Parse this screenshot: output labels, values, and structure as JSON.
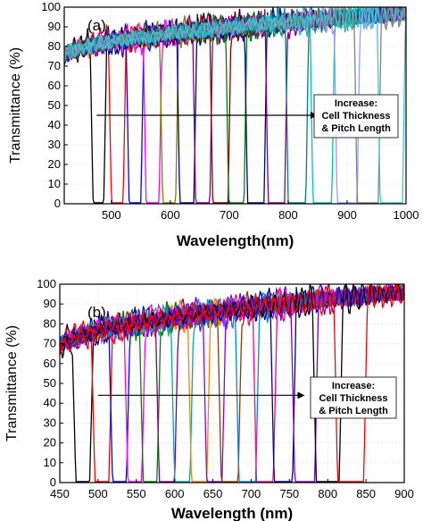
{
  "chart_data": [
    {
      "type": "line",
      "panel_label": "(a)",
      "xlabel": "Wavelength(nm)",
      "ylabel": "Transmittance (%)",
      "xlim": [
        420,
        1000
      ],
      "ylim": [
        0,
        100
      ],
      "xticks": [
        500,
        600,
        700,
        800,
        900,
        1000
      ],
      "yticks": [
        0,
        10,
        20,
        30,
        40,
        50,
        60,
        70,
        80,
        90,
        100
      ],
      "grid": true,
      "annotation": {
        "line1": "Increase:",
        "line2": "Cell Thickness",
        "line3": "& Pitch Length"
      },
      "arrow": {
        "from": [
          475,
          45
        ],
        "to": [
          850,
          45
        ]
      },
      "baseline": {
        "at_440": 75,
        "at_1000": 97
      },
      "series": [
        {
          "center": 478,
          "width": 28,
          "color": "#000000"
        },
        {
          "center": 510,
          "width": 30,
          "color": "#ff0000"
        },
        {
          "center": 540,
          "width": 30,
          "color": "#0000ff"
        },
        {
          "center": 570,
          "width": 32,
          "color": "#ff00ff"
        },
        {
          "center": 598,
          "width": 32,
          "color": "#808000"
        },
        {
          "center": 628,
          "width": 34,
          "color": "#000080"
        },
        {
          "center": 655,
          "width": 34,
          "color": "#800080"
        },
        {
          "center": 685,
          "width": 36,
          "color": "#800000"
        },
        {
          "center": 712,
          "width": 36,
          "color": "#008000"
        },
        {
          "center": 745,
          "width": 38,
          "color": "#000080"
        },
        {
          "center": 780,
          "width": 38,
          "color": "#800080"
        },
        {
          "center": 815,
          "width": 40,
          "color": "#008080"
        },
        {
          "center": 858,
          "width": 42,
          "color": "#00c0c0"
        },
        {
          "center": 900,
          "width": 44,
          "color": "#9999ff"
        },
        {
          "center": 935,
          "width": 46,
          "color": "#808080"
        },
        {
          "center": 975,
          "width": 48,
          "color": "#33cccc"
        }
      ]
    },
    {
      "type": "line",
      "panel_label": "(b)",
      "xlabel": "Wavelength (nm)",
      "ylabel": "Transmittance (%)",
      "xlim": [
        450,
        900
      ],
      "ylim": [
        0,
        100
      ],
      "xticks": [
        450,
        500,
        550,
        600,
        650,
        700,
        750,
        800,
        850,
        900
      ],
      "yticks": [
        0,
        10,
        20,
        30,
        40,
        50,
        60,
        70,
        80,
        90,
        100
      ],
      "grid": true,
      "annotation": {
        "line1": "Increase:",
        "line2": "Cell Thickness",
        "line3": "& Pitch Length"
      },
      "arrow": {
        "from": [
          500,
          44
        ],
        "to": [
          770,
          44
        ]
      },
      "baseline": {
        "at_450": 68,
        "at_900": 96
      },
      "series": [
        {
          "center": 480,
          "width": 28,
          "color": "#000000"
        },
        {
          "center": 505,
          "width": 28,
          "color": "#ff0000"
        },
        {
          "center": 528,
          "width": 28,
          "color": "#0000ff"
        },
        {
          "center": 548,
          "width": 28,
          "color": "#ff00ff"
        },
        {
          "center": 568,
          "width": 28,
          "color": "#008000"
        },
        {
          "center": 590,
          "width": 30,
          "color": "#800080"
        },
        {
          "center": 610,
          "width": 30,
          "color": "#00aaaa"
        },
        {
          "center": 632,
          "width": 30,
          "color": "#ff8000"
        },
        {
          "center": 652,
          "width": 30,
          "color": "#8000ff"
        },
        {
          "center": 672,
          "width": 32,
          "color": "#804000"
        },
        {
          "center": 695,
          "width": 32,
          "color": "#0080ff"
        },
        {
          "center": 718,
          "width": 32,
          "color": "#ff0080"
        },
        {
          "center": 742,
          "width": 34,
          "color": "#000080"
        },
        {
          "center": 770,
          "width": 36,
          "color": "#8000c0"
        },
        {
          "center": 800,
          "width": 40,
          "color": "#000000"
        },
        {
          "center": 830,
          "width": 44,
          "color": "#ff0000"
        }
      ]
    }
  ]
}
